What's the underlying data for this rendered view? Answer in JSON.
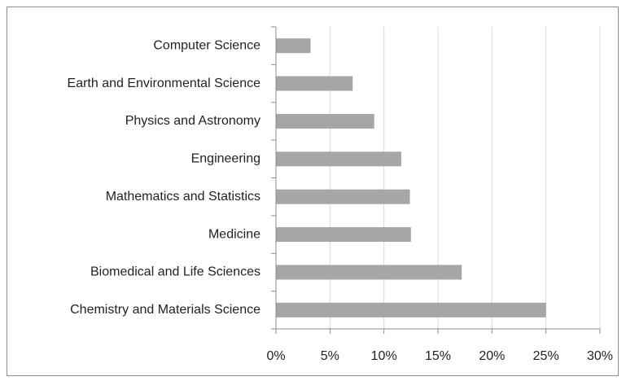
{
  "chart_data": {
    "type": "bar",
    "orientation": "horizontal",
    "categories": [
      "Computer Science",
      "Earth and Environmental Science",
      "Physics and Astronomy",
      "Engineering",
      "Mathematics and Statistics",
      "Medicine",
      "Biomedical and Life Sciences",
      "Chemistry and Materials Science"
    ],
    "values": [
      3.2,
      7.1,
      9.1,
      11.6,
      12.4,
      12.5,
      17.2,
      25
    ],
    "color": "#a6a6a6",
    "xlim": [
      0,
      30
    ],
    "xticks": [
      {
        "value": 0,
        "label": "0%"
      },
      {
        "value": 5,
        "label": "5%"
      },
      {
        "value": 10,
        "label": "10%"
      },
      {
        "value": 15,
        "label": "15%"
      },
      {
        "value": 20,
        "label": "20%"
      },
      {
        "value": 25,
        "label": "25%"
      },
      {
        "value": 30,
        "label": "30%"
      }
    ],
    "grid": true
  }
}
